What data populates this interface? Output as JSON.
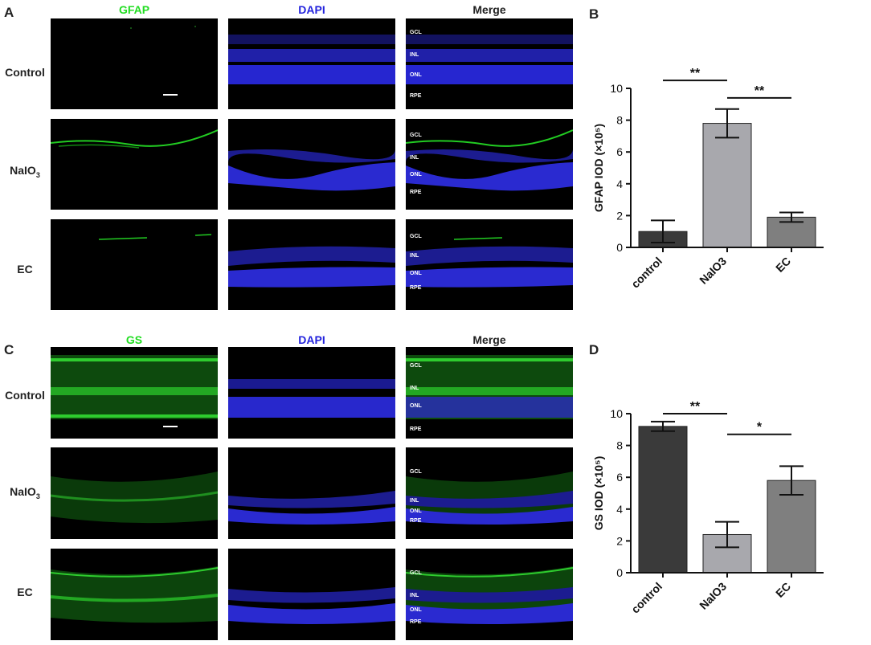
{
  "panels": {
    "A": {
      "letter": "A",
      "columns": [
        "GFAP",
        "DAPI",
        "Merge"
      ],
      "column_colors": [
        "#22dd22",
        "#2222dd",
        "#222222"
      ],
      "rows": [
        {
          "base": "Control",
          "sub": ""
        },
        {
          "base": "NaIO",
          "sub": "3"
        },
        {
          "base": "EC",
          "sub": ""
        }
      ],
      "layer_labels": [
        "GCL",
        "INL",
        "ONL",
        "RPE"
      ]
    },
    "C": {
      "letter": "C",
      "columns": [
        "GS",
        "DAPI",
        "Merge"
      ],
      "column_colors": [
        "#22dd22",
        "#2222dd",
        "#222222"
      ],
      "rows": [
        {
          "base": "Control",
          "sub": ""
        },
        {
          "base": "NaIO",
          "sub": "3"
        },
        {
          "base": "EC",
          "sub": ""
        }
      ],
      "layer_labels": [
        "GCL",
        "INL",
        "ONL",
        "RPE"
      ]
    }
  },
  "chart_data": [
    {
      "panel": "B",
      "type": "bar",
      "categories": [
        "control",
        "NaIO3",
        "EC"
      ],
      "values": [
        1.0,
        7.8,
        1.9
      ],
      "errors": [
        0.7,
        0.9,
        0.3
      ],
      "bar_colors": [
        "#3a3a3a",
        "#a8a8ad",
        "#7f7f7f"
      ],
      "ylabel": "GFAP IOD (×10⁵)",
      "ylim": [
        0,
        10
      ],
      "yticks": [
        "0",
        "2",
        "4",
        "6",
        "8",
        "10"
      ],
      "significance": [
        {
          "from": 0,
          "to": 1,
          "label": "**",
          "level": 10.5
        },
        {
          "from": 1,
          "to": 2,
          "label": "**",
          "level": 9.4
        }
      ]
    },
    {
      "panel": "D",
      "type": "bar",
      "categories": [
        "control",
        "NaIO3",
        "EC"
      ],
      "values": [
        9.2,
        2.4,
        5.8
      ],
      "errors": [
        0.3,
        0.8,
        0.9
      ],
      "bar_colors": [
        "#3a3a3a",
        "#a8a8ad",
        "#7f7f7f"
      ],
      "ylabel": "GS IOD (×10⁵)",
      "ylim": [
        0,
        10
      ],
      "yticks": [
        "0",
        "2",
        "4",
        "6",
        "8",
        "10"
      ],
      "significance": [
        {
          "from": 0,
          "to": 1,
          "label": "**",
          "level": 10.0
        },
        {
          "from": 1,
          "to": 2,
          "label": "*",
          "level": 8.7
        }
      ]
    }
  ]
}
